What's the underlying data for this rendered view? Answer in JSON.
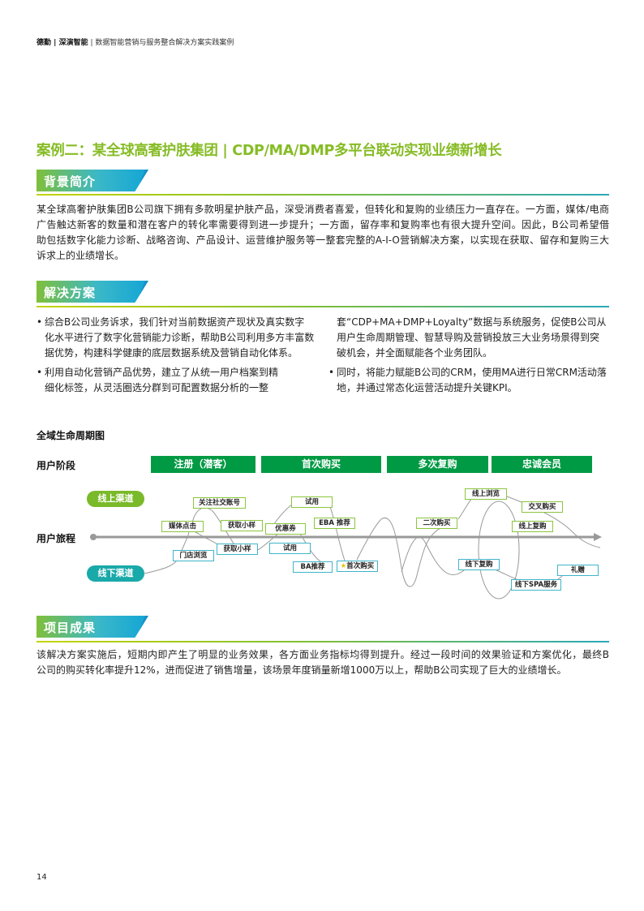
{
  "header": {
    "brand1": "德勤",
    "brand2": "深演智能",
    "doc_title": "数据智能营销与服务整合解决方案实践案例"
  },
  "case_title": "案例二：某全球高奢护肤集团 | CDP/MA/DMP多平台联动实现业绩新增长",
  "sections": {
    "background": {
      "label": "背景简介",
      "lines": [
        "某全球高奢护肤集团B公司旗下拥有多款明星护肤产品，深受消费者喜爱，但转化和复购的业绩压力一直存在。一方面，媒体/电商",
        "广告触达新客的数量和潜在客户的转化率需要得到进一步提升；一方面，留存率和复购率也有很大提升空间。因此，B公司希望借",
        "助包括数字化能力诊断、战略咨询、产品设计、运营维护服务等一整套完整的A-I-O营销解决方案，以实现在获取、留存和复购三大",
        "诉求上的业绩增长。"
      ]
    },
    "solution": {
      "label": "解决方案",
      "left": [
        [
          "综合B公司业务诉求，我们针对当前数据资产现状及真实数字",
          "化水平进行了数字化营销能力诊断，帮助B公司利用多方丰富数",
          "据优势，构建科学健康的底层数据系统及营销自动化体系。"
        ],
        [
          "利用自动化营销产品优势，建立了从统一用户档案到精",
          "细化标签，从灵活圈选分群到可配置数据分析的一整"
        ]
      ],
      "right": [
        [
          "套“CDP+MA+DMP+Loyalty”数据与系统服务，促使B公司从",
          "用户生命周期管理、智慧导购及营销投放三大业务场景得到突",
          "破机会，并全面赋能各个业务团队。"
        ],
        [
          "同时，将能力赋能B公司的CRM，使用MA进行日常CRM活动落",
          "地，并通过常态化运营活动提升关键KPI。"
        ]
      ]
    },
    "results": {
      "label": "项目成果",
      "lines": [
        "该解决方案实施后，短期内即产生了明显的业务效果，各方面业务指标均得到提升。经过一段时间的效果验证和方案优化，最终B",
        "公司的购买转化率提升12%，进而促进了销售增量，该场景年度销量新增1000万以上，帮助B公司实现了巨大的业绩增长。"
      ]
    }
  },
  "diagram": {
    "title": "全域生命周期图",
    "stage_label": "用户阶段",
    "journey_label": "用户旅程",
    "stages": [
      "注册（潜客）",
      "首次购买",
      "多次复购",
      "忠诚会员"
    ],
    "online_channel": "线上渠道",
    "offline_channel": "线下渠道",
    "online_nodes": [
      "关注社交账号",
      "媒体点击",
      "获取小样",
      "优惠券",
      "试用",
      "EBA 推荐",
      "二次购买",
      "线上浏览",
      "交叉购买",
      "线上复购"
    ],
    "offline_nodes": [
      "门店浏览",
      "获取小样",
      "试用",
      "BA推荐",
      "首次购买",
      "线下复购",
      "礼赠",
      "线下SPA服务"
    ],
    "star_icon": "star-icon",
    "colors": {
      "stage": "#009a44",
      "online": "#8cc63f",
      "offline": "#3fb5c9",
      "title": "#86bc25"
    }
  },
  "page_number": "14"
}
